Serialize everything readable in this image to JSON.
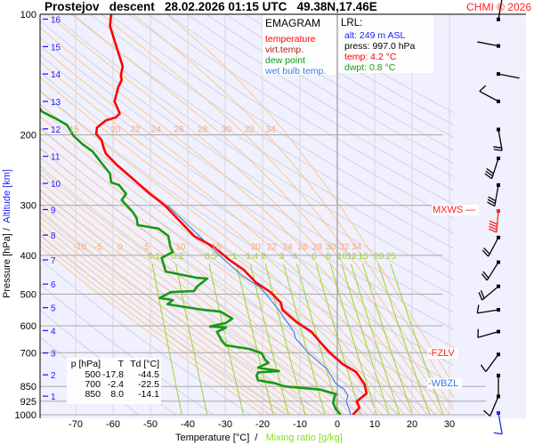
{
  "header": {
    "title": "Prostejov   descent   28.02.2026 01:15 UTC   49.38N,17.46E",
    "copyright": "CHMI © 2026"
  },
  "legend": {
    "title": "EMAGRAM",
    "items": [
      {
        "label": "temperature",
        "color": "#ff0000"
      },
      {
        "label": "virt.temp.",
        "color": "#b02020"
      },
      {
        "label": "dew point",
        "color": "#159915"
      },
      {
        "label": "wet bulb temp.",
        "color": "#3a7ce8"
      }
    ]
  },
  "lrl": {
    "title": "LRL:",
    "alt": "alt: 249 m ASL",
    "press": "press: 997.0 hPa",
    "temp": "temp: 4.2 °C",
    "dwpt": "dwpt: 0.8 °C"
  },
  "table": {
    "headers": [
      "p [hPa]",
      "T",
      "Td [°C]"
    ],
    "rows": [
      [
        "500",
        "-17.8",
        "-44.5"
      ],
      [
        "700",
        "-2.4",
        "-22.5"
      ],
      [
        "850",
        "8.0",
        "-14.1"
      ]
    ]
  },
  "levels": {
    "mxws": {
      "label": "MXWS",
      "p": 310,
      "color": "#ff2020"
    },
    "fzlv": {
      "label": "FZLV",
      "p": 707,
      "color": "#ff2020"
    },
    "wbzl": {
      "label": "WBZL",
      "p": 840,
      "color": "#3a7ce8"
    }
  },
  "chart_data": {
    "type": "line",
    "title": "EMAGRAM",
    "xlabel": "Temperature [°C]",
    "xlabel2": "Mixing ratio [g/kg]",
    "ylabel": "Pressure [hPa]",
    "ylabel2": "Altitude [km]",
    "separator": "/",
    "xlim": [
      -80,
      30
    ],
    "ylim": [
      1000,
      100
    ],
    "x_ticks": [
      -70,
      -60,
      -50,
      -40,
      -30,
      -20,
      -10,
      0,
      10,
      20,
      30
    ],
    "y_ticks": [
      100,
      200,
      300,
      400,
      500,
      600,
      700,
      850,
      925,
      1000
    ],
    "altitude_ticks_km": [
      1,
      2,
      3,
      4,
      5,
      6,
      7,
      8,
      9,
      10,
      11,
      12,
      13,
      14,
      15,
      16
    ],
    "pseudoadiabat_labels_upper": [
      15,
      20,
      22,
      24,
      26,
      28,
      30,
      32,
      34
    ],
    "pseudoadiabat_labels_lower": [
      -10,
      -5,
      0,
      5,
      10,
      15,
      20,
      22,
      24,
      26,
      28,
      30,
      32,
      34
    ],
    "mixing_ratio_labels": [
      "0.1",
      "0.2",
      "0.5",
      "1",
      "1.4",
      "2",
      "3",
      "4",
      "6",
      "8",
      "10",
      "12",
      "15",
      "20",
      "25"
    ],
    "series": [
      {
        "name": "temperature",
        "color": "#ff0000",
        "p": [
          100,
          107,
          122,
          135,
          142,
          146,
          152,
          165,
          177,
          181,
          184,
          192,
          199,
          206,
          217,
          223,
          238,
          257,
          281,
          299,
          331,
          358,
          382,
          411,
          434,
          467,
          494,
          525,
          547,
          587,
          621,
          660,
          699,
          747,
          782,
          840,
          885,
          926,
          960,
          1000
        ],
        "t": [
          -60.5,
          -60.8,
          -58.9,
          -57.4,
          -57.9,
          -57.7,
          -58.6,
          -59.6,
          -58.2,
          -59.3,
          -61.9,
          -64.3,
          -64.5,
          -63.1,
          -62.4,
          -61.9,
          -58.9,
          -54.8,
          -50.1,
          -46.3,
          -41.8,
          -38.3,
          -32.9,
          -28.8,
          -25.1,
          -21.8,
          -17.9,
          -15.1,
          -14.7,
          -10.9,
          -6.9,
          -4.5,
          -2.1,
          1.4,
          5.0,
          7.3,
          7.8,
          5.2,
          5.9,
          4.2
        ]
      },
      {
        "name": "dew point",
        "color": "#159915",
        "p": [
          170,
          175,
          182,
          189,
          201,
          211,
          220,
          235,
          250,
          263,
          267,
          281,
          291,
          299,
          311,
          323,
          336,
          343,
          358,
          380,
          392,
          406,
          439,
          455,
          457,
          479,
          491,
          494,
          511,
          517,
          530,
          547,
          553,
          575,
          590,
          602,
          606,
          621,
          651,
          671,
          685,
          703,
          729,
          742,
          763,
          778,
          784,
          800,
          820,
          835,
          850,
          865,
          888,
          912,
          935,
          969,
          994,
          1000
        ],
        "t": [
          -80,
          -79,
          -75.4,
          -72.3,
          -70.6,
          -68.2,
          -65.5,
          -63.1,
          -60.8,
          -60.5,
          -58.4,
          -56.5,
          -57.7,
          -56.5,
          -54.8,
          -53.7,
          -53.4,
          -47.8,
          -45.2,
          -44.7,
          -44.0,
          -47.0,
          -45.9,
          -37.6,
          -34.8,
          -37.6,
          -38.3,
          -44.5,
          -47.5,
          -44.0,
          -45.4,
          -35.9,
          -31.2,
          -28.1,
          -29.8,
          -34.0,
          -29.8,
          -32.2,
          -31.0,
          -29.8,
          -23.4,
          -20.2,
          -19.3,
          -18.4,
          -21.2,
          -15.6,
          -21.2,
          -21.6,
          -21.2,
          -16.5,
          -14.1,
          -4.6,
          -0.4,
          -0.9,
          -1.1,
          -0.4,
          0.7,
          0.8
        ]
      },
      {
        "name": "wet bulb temp.",
        "color": "#3a7ce8",
        "p": [
          300,
          350,
          400,
          450,
          481,
          550,
          621,
          644,
          700,
          770,
          835,
          865,
          895,
          930,
          975,
          1000
        ],
        "t": [
          -45.5,
          -38,
          -31.5,
          -25.5,
          -20.5,
          -15.5,
          -11.6,
          -11.2,
          -7.8,
          -2.7,
          -0.4,
          1.9,
          2.8,
          2.4,
          3.3,
          3.5
        ]
      }
    ],
    "wind": [
      {
        "p": 103,
        "dir": 10,
        "kt": 3
      },
      {
        "p": 120,
        "dir": 281,
        "kt": 3
      },
      {
        "p": 141,
        "dir": 101,
        "kt": 3
      },
      {
        "p": 165,
        "dir": 298,
        "kt": 10
      },
      {
        "p": 194,
        "dir": 170,
        "kt": 20
      },
      {
        "p": 229,
        "dir": 198,
        "kt": 30
      },
      {
        "p": 267,
        "dir": 190,
        "kt": 30
      },
      {
        "p": 310,
        "dir": 185,
        "kt": 40,
        "color": "#ff2020"
      },
      {
        "p": 361,
        "dir": 208,
        "kt": 20
      },
      {
        "p": 416,
        "dir": 212,
        "kt": 20
      },
      {
        "p": 478,
        "dir": 230,
        "kt": 20
      },
      {
        "p": 547,
        "dir": 261,
        "kt": 10
      },
      {
        "p": 620,
        "dir": 254,
        "kt": 10
      },
      {
        "p": 707,
        "dir": 216,
        "kt": 10
      },
      {
        "p": 798,
        "dir": 180,
        "kt": 3
      },
      {
        "p": 900,
        "dir": 203,
        "kt": 10
      },
      {
        "p": 990,
        "dir": 170,
        "kt": 5,
        "color": "#2030e0"
      }
    ]
  }
}
